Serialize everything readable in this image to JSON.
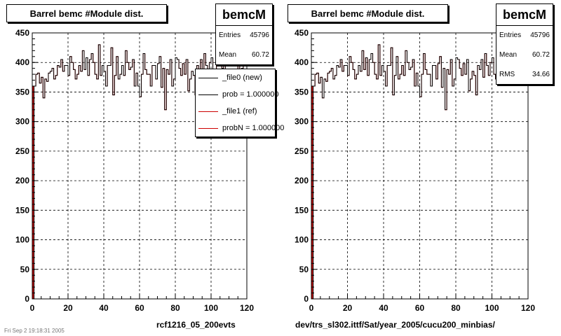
{
  "panels": [
    {
      "title": "Barrel bemc #Module dist.",
      "stats": {
        "name": "bemcM",
        "entries_label": "Entries",
        "entries": "45796",
        "mean_label": "Mean",
        "mean": "60.72"
      },
      "legend": [
        {
          "label": "_file0 (new)",
          "color": "#000000"
        },
        {
          "label": "prob = 1.000000",
          "color": "#000000"
        },
        {
          "label": "_file1 (ref)",
          "color": "#cc0000"
        },
        {
          "label": "probN = 1.000000",
          "color": "#cc0000"
        }
      ],
      "caption": "rcf1216_05_200evts"
    },
    {
      "title": "Barrel bemc #Module dist.",
      "stats": {
        "name": "bemcM",
        "entries_label": "Entries",
        "entries": "45796",
        "mean_label": "Mean",
        "mean": "60.72",
        "rms_label": "RMS",
        "rms": "34.66"
      },
      "caption": "dev/trs_sl302.ittf/Sat/year_2005/cucu200_minbias/"
    }
  ],
  "footer": "Fri Sep 2 19:18:31 2005",
  "chart_data": {
    "type": "line",
    "xlabel": "",
    "ylabel": "",
    "xlim": [
      0,
      120
    ],
    "ylim": [
      0,
      450
    ],
    "xticks": [
      0,
      20,
      40,
      60,
      80,
      100,
      120
    ],
    "yticks": [
      0,
      50,
      100,
      150,
      200,
      250,
      300,
      350,
      400,
      450
    ],
    "grid": true,
    "series": [
      {
        "name": "_file0 (new)",
        "color_new": "#000000",
        "color_ref": "#cc0000",
        "bins_x_start": 0,
        "bin_width": 1,
        "values": [
          0,
          360,
          380,
          382,
          365,
          375,
          340,
          372,
          368,
          382,
          385,
          390,
          372,
          378,
          395,
          392,
          405,
          385,
          395,
          395,
          378,
          410,
          400,
          388,
          372,
          380,
          395,
          385,
          420,
          388,
          408,
          378,
          405,
          415,
          400,
          380,
          372,
          430,
          378,
          395,
          385,
          360,
          395,
          395,
          425,
          345,
          378,
          410,
          372,
          380,
          395,
          378,
          420,
          400,
          388,
          392,
          405,
          360,
          382,
          360,
          342,
          380,
          415,
          388,
          380,
          380,
          360,
          395,
          395,
          372,
          398,
          410,
          358,
          390,
          320,
          388,
          380,
          405,
          360,
          372,
          408,
          405,
          390,
          378,
          398,
          380,
          405,
          352,
          372,
          385,
          378,
          345,
          395,
          388,
          405,
          375,
          415,
          395,
          378,
          400,
          408,
          380,
          372,
          400,
          410,
          400,
          390,
          412,
          375,
          380,
          370,
          380,
          378,
          380,
          372,
          400,
          378,
          390,
          405,
          395
        ]
      }
    ]
  },
  "colors": {
    "frame": "#000000",
    "grid": "#000000",
    "new": "#000000",
    "ref": "#cc0000"
  }
}
